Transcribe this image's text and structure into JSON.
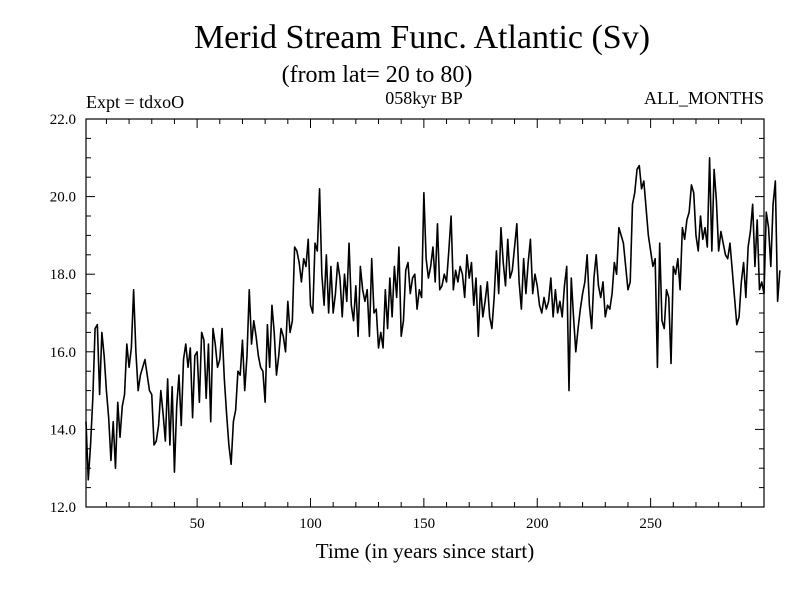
{
  "chart_data": {
    "type": "line",
    "title": "Merid Stream Func. Atlantic (Sv)",
    "subtitle": "(from lat= 20 to 80)",
    "experiment_label": "Expt = tdxoO",
    "period_label": "058kyr BP",
    "months_label": "ALL_MONTHS",
    "xlabel": "Time (in years since start)",
    "ylabel": "",
    "xlim": [
      1,
      300
    ],
    "ylim": [
      12.0,
      22.0
    ],
    "x_ticks": [
      50,
      100,
      150,
      200,
      250
    ],
    "x_tick_labels": [
      "50",
      "100",
      "150",
      "200",
      "250"
    ],
    "y_ticks": [
      12.0,
      14.0,
      16.0,
      18.0,
      20.0,
      22.0
    ],
    "y_tick_labels": [
      "12.0",
      "14.0",
      "16.0",
      "18.0",
      "20.0",
      "22.0"
    ],
    "series": [
      {
        "name": "Merid Stream Func. Atlantic",
        "color": "#000000",
        "x_start": 1,
        "x_step": 1,
        "values": [
          14.2,
          12.7,
          13.6,
          14.8,
          16.6,
          16.7,
          14.9,
          16.5,
          15.9,
          15.0,
          14.3,
          13.2,
          14.2,
          13.0,
          14.7,
          13.8,
          14.6,
          14.9,
          16.2,
          15.6,
          16.1,
          17.6,
          16.0,
          15.0,
          15.4,
          15.6,
          15.8,
          15.4,
          15.0,
          14.9,
          13.6,
          13.7,
          14.1,
          15.0,
          14.4,
          13.7,
          15.3,
          13.6,
          15.1,
          12.9,
          14.6,
          15.4,
          14.1,
          15.8,
          16.2,
          15.6,
          16.1,
          14.3,
          15.9,
          16.0,
          14.7,
          16.5,
          16.3,
          14.8,
          16.2,
          14.2,
          16.6,
          16.2,
          15.6,
          15.8,
          16.6,
          15.3,
          14.4,
          13.6,
          13.1,
          14.2,
          14.5,
          15.5,
          15.4,
          16.3,
          15.0,
          15.9,
          17.6,
          16.2,
          16.8,
          16.4,
          15.9,
          15.6,
          15.5,
          14.7,
          16.7,
          15.6,
          17.2,
          16.5,
          15.4,
          15.9,
          16.6,
          16.4,
          16.0,
          17.3,
          16.5,
          16.8,
          18.7,
          18.6,
          18.3,
          17.8,
          18.4,
          18.2,
          18.9,
          17.2,
          17.0,
          18.8,
          18.6,
          20.2,
          18.0,
          17.2,
          18.5,
          17.0,
          18.2,
          17.0,
          17.5,
          18.3,
          17.9,
          16.9,
          18.0,
          17.3,
          18.8,
          17.2,
          16.8,
          17.7,
          16.4,
          18.2,
          17.6,
          17.3,
          17.6,
          16.4,
          18.4,
          17.0,
          17.1,
          16.1,
          16.5,
          16.1,
          17.6,
          16.6,
          17.9,
          16.9,
          18.2,
          17.4,
          18.7,
          16.4,
          16.8,
          18.1,
          18.3,
          17.5,
          17.9,
          18.0,
          17.1,
          17.6,
          17.4,
          20.1,
          18.4,
          17.9,
          18.2,
          18.7,
          17.8,
          19.3,
          17.6,
          17.7,
          18.0,
          17.8,
          18.6,
          19.5,
          17.6,
          18.1,
          17.8,
          18.2,
          18.0,
          17.4,
          18.5,
          17.9,
          18.3,
          17.2,
          17.9,
          16.4,
          17.7,
          16.9,
          17.3,
          17.8,
          16.9,
          16.6,
          17.4,
          18.6,
          17.5,
          19.2,
          18.3,
          17.7,
          18.9,
          17.9,
          18.1,
          18.7,
          19.3,
          17.8,
          17.1,
          18.4,
          17.5,
          18.3,
          18.9,
          17.5,
          18.0,
          17.7,
          17.2,
          17.0,
          17.4,
          17.1,
          17.3,
          17.9,
          16.9,
          17.6,
          17.0,
          17.3,
          16.9,
          17.7,
          18.2,
          15.0,
          17.9,
          16.9,
          16.0,
          16.6,
          17.1,
          17.5,
          17.8,
          18.5,
          17.2,
          16.6,
          17.9,
          18.5,
          17.7,
          17.4,
          17.8,
          16.9,
          17.2,
          17.1,
          17.5,
          18.3,
          18.0,
          19.2,
          19.0,
          18.8,
          18.2,
          17.6,
          17.8,
          19.8,
          20.1,
          20.7,
          20.8,
          20.2,
          20.4,
          19.7,
          19.0,
          18.6,
          18.2,
          18.4,
          15.6,
          18.8,
          16.8,
          16.6,
          17.6,
          17.4,
          15.7,
          18.2,
          18.0,
          18.4,
          17.6,
          19.2,
          18.9,
          19.4,
          19.6,
          20.3,
          20.1,
          19.0,
          18.6,
          19.5,
          18.9,
          19.2,
          18.7,
          21.0,
          18.6,
          20.7,
          19.9,
          18.6,
          19.1,
          18.8,
          18.5,
          18.4,
          18.8,
          18.1,
          17.4,
          16.7,
          16.9,
          17.8,
          18.3,
          17.4,
          18.7,
          19.1,
          19.8,
          18.2,
          19.4,
          17.6,
          17.8,
          17.5,
          19.6,
          19.2,
          18.2,
          19.8,
          20.4,
          17.3,
          18.1
        ]
      }
    ]
  }
}
